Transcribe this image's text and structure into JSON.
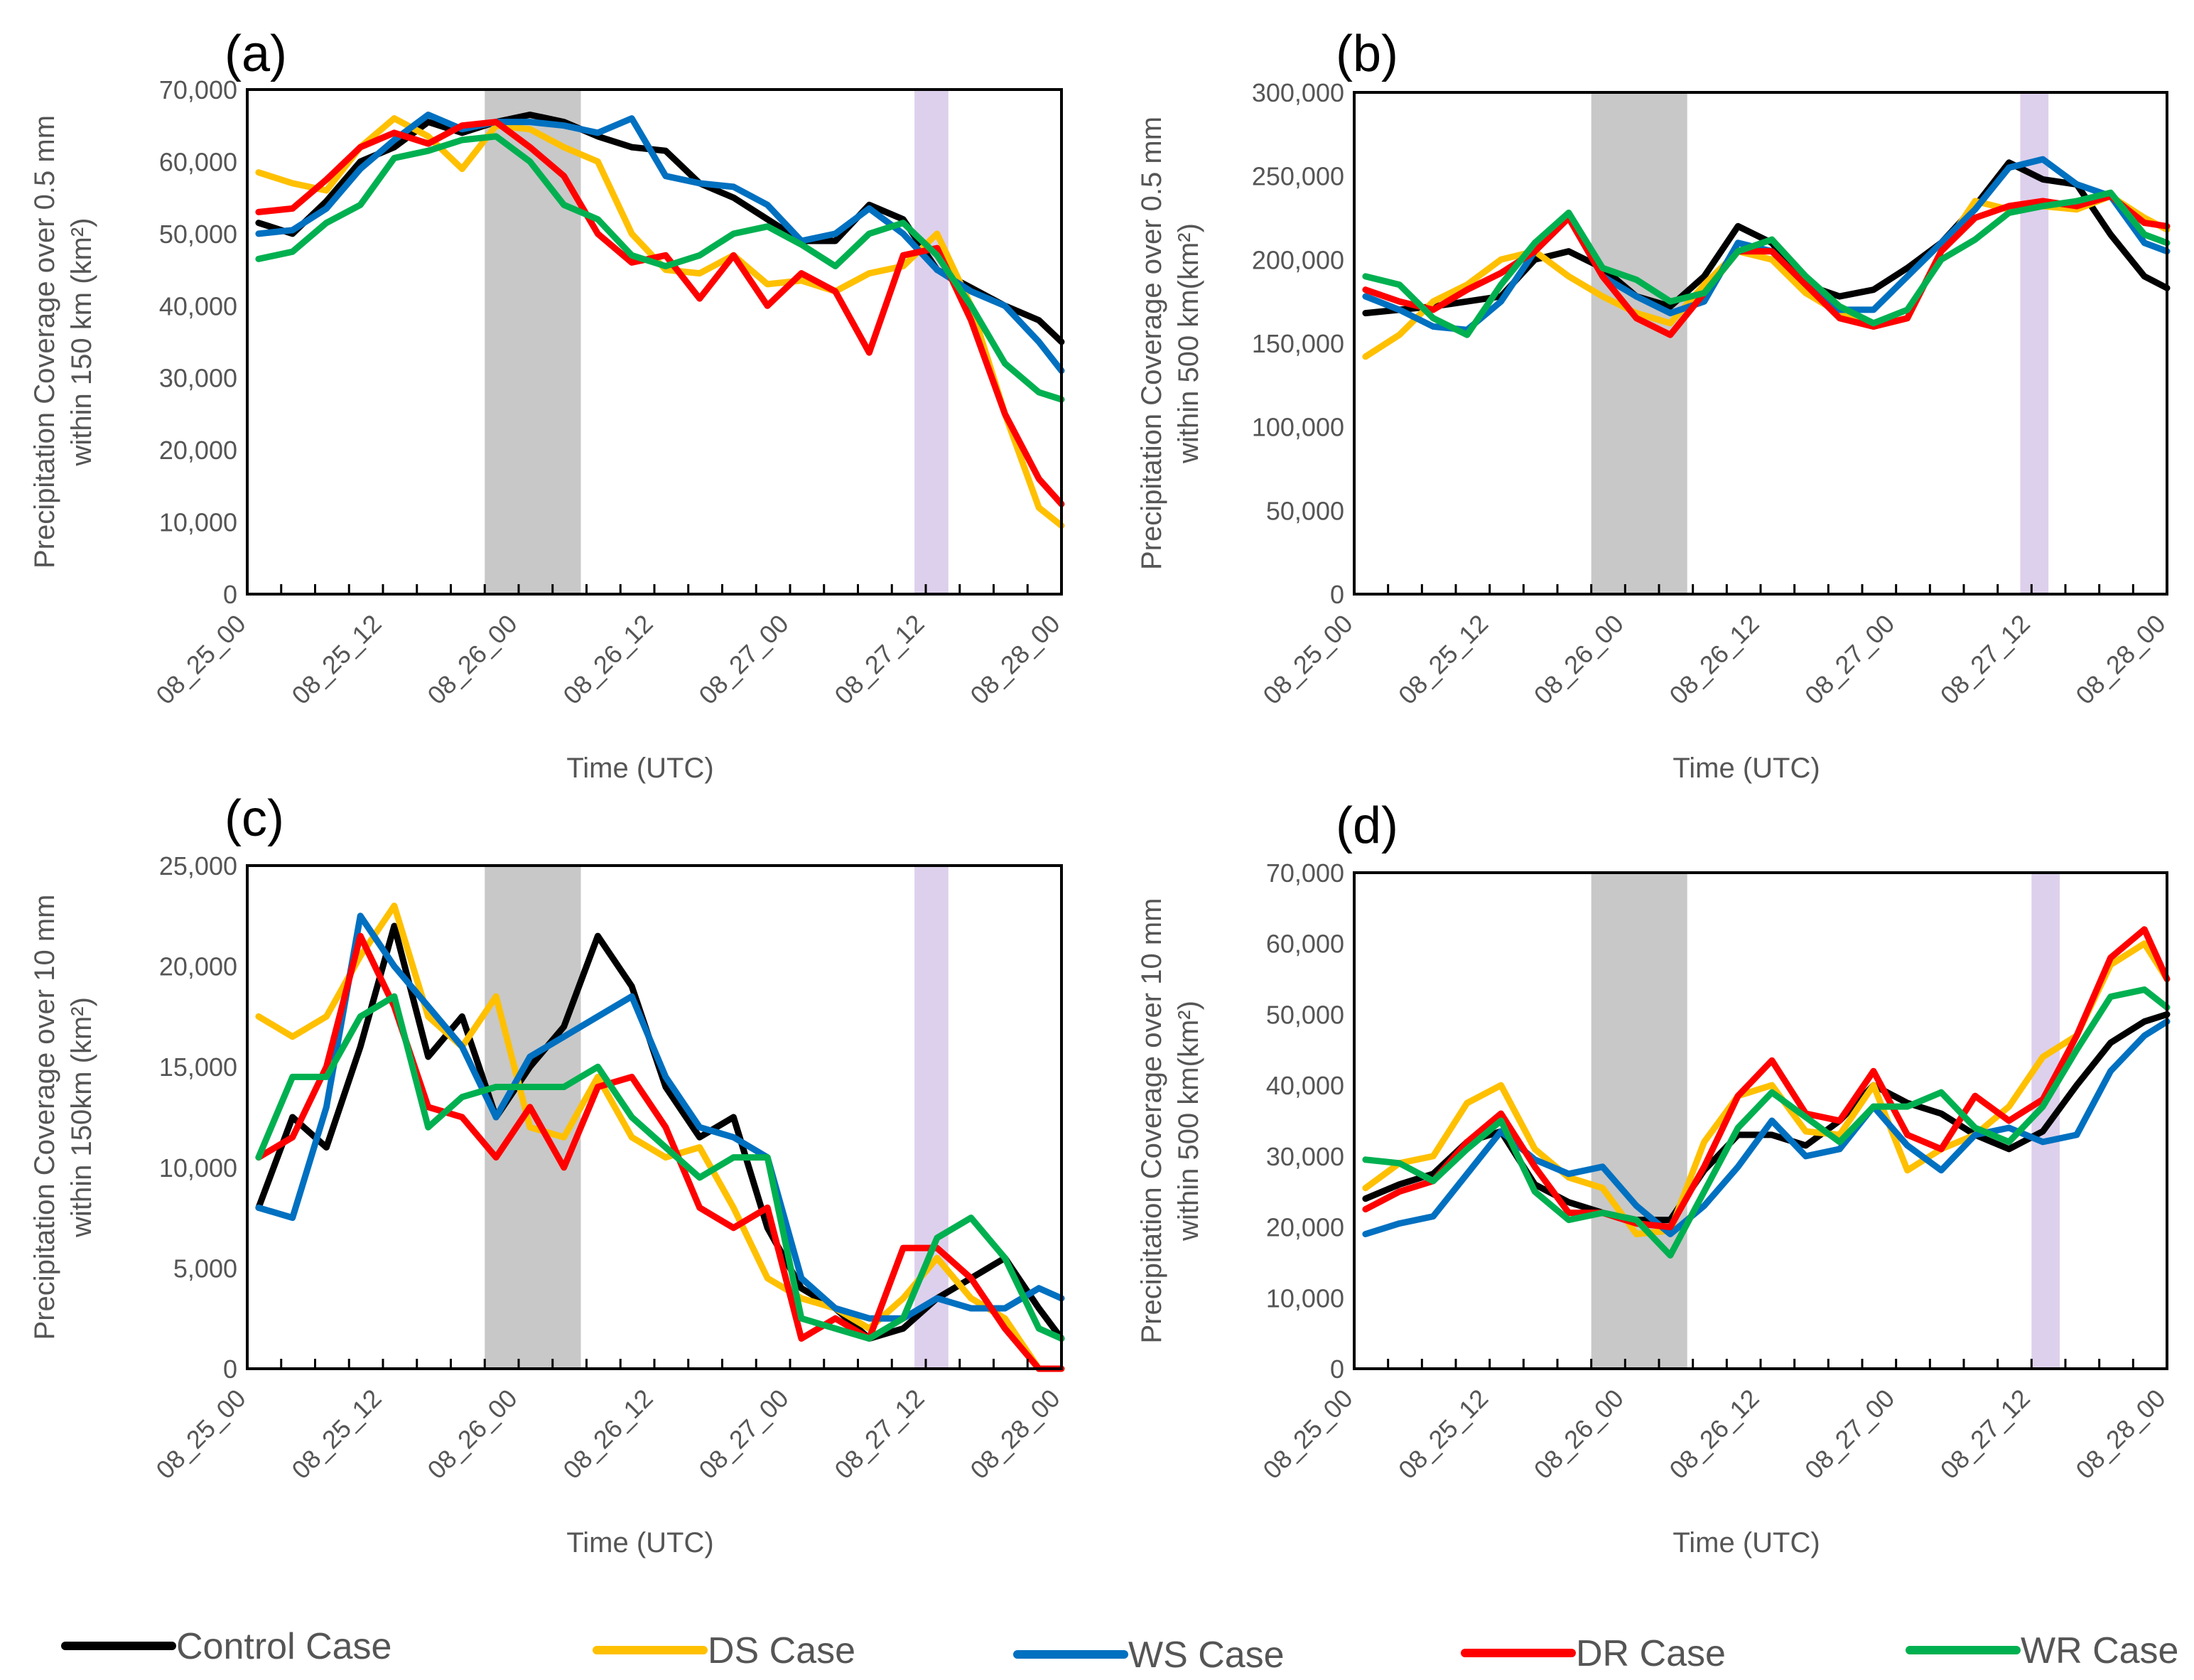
{
  "chart_data": [
    {
      "panel": "(a)",
      "type": "line",
      "title": "",
      "ylabel_line1": "Precipitation Coverage over 0.5 mm",
      "ylabel_line2": "within 150 km (km²)",
      "xlabel": "Time (UTC)",
      "ylim": [
        0,
        70000
      ],
      "yticks": [
        0,
        10000,
        20000,
        30000,
        40000,
        50000,
        60000,
        70000
      ],
      "ytick_labels": [
        "0",
        "10,000",
        "20,000",
        "30,000",
        "40,000",
        "50,000",
        "60,000",
        "70,000"
      ],
      "xlim": [
        0,
        72
      ],
      "xticks": [
        0,
        12,
        24,
        36,
        48,
        60,
        72
      ],
      "xtick_labels": [
        "08_25_00",
        "08_25_12",
        "08_26_00",
        "08_26_12",
        "08_27_00",
        "08_27_12",
        "08_28_00"
      ],
      "shaded_gray": [
        21,
        29.5
      ],
      "shaded_purple": [
        59,
        62
      ],
      "x": [
        1,
        4,
        7,
        10,
        13,
        16,
        19,
        22,
        25,
        28,
        31,
        34,
        37,
        40,
        43,
        46,
        49,
        52,
        55,
        58,
        61,
        64,
        67,
        70,
        72
      ],
      "series": [
        {
          "name": "Control Case",
          "values": [
            51500,
            50000,
            54500,
            60000,
            62000,
            65500,
            64000,
            65500,
            66500,
            65500,
            63500,
            62000,
            61500,
            57000,
            55000,
            52000,
            49000,
            49000,
            54000,
            52000,
            45000,
            42500,
            40000,
            38000,
            35000
          ]
        },
        {
          "name": "DS Case",
          "values": [
            58500,
            57000,
            56000,
            62000,
            66000,
            63500,
            59000,
            65000,
            64500,
            62000,
            60000,
            50000,
            45000,
            44500,
            47000,
            43000,
            43500,
            42000,
            44500,
            45500,
            50000,
            40000,
            25000,
            12000,
            9500
          ]
        },
        {
          "name": "WS Case",
          "values": [
            50000,
            50500,
            53500,
            59000,
            63000,
            66500,
            64500,
            65500,
            65500,
            65000,
            64000,
            66000,
            58000,
            57000,
            56500,
            54000,
            49000,
            50000,
            53500,
            50000,
            45000,
            42000,
            40000,
            35000,
            31000
          ]
        },
        {
          "name": "DR Case",
          "values": [
            53000,
            53500,
            57500,
            62000,
            64000,
            62500,
            65000,
            65500,
            62000,
            58000,
            50000,
            46000,
            47000,
            41000,
            47000,
            40000,
            44500,
            42000,
            33500,
            47000,
            48000,
            38000,
            25000,
            16000,
            12500
          ]
        },
        {
          "name": "WR Case",
          "values": [
            46500,
            47500,
            51500,
            54000,
            60500,
            61500,
            63000,
            63500,
            60000,
            54000,
            52000,
            47000,
            45500,
            47000,
            50000,
            51000,
            48500,
            45500,
            50000,
            51500,
            47000,
            40000,
            32000,
            28000,
            27000
          ]
        }
      ]
    },
    {
      "panel": "(b)",
      "type": "line",
      "title": "",
      "ylabel_line1": "Precipitation Coverage over 0.5 mm",
      "ylabel_line2": "within 500 km(km²)",
      "xlabel": "Time (UTC)",
      "ylim": [
        0,
        300000
      ],
      "yticks": [
        0,
        50000,
        100000,
        150000,
        200000,
        250000,
        300000
      ],
      "ytick_labels": [
        "0",
        "50,000",
        "100,000",
        "150,000",
        "200,000",
        "250,000",
        "300,000"
      ],
      "xlim": [
        0,
        72
      ],
      "xticks": [
        0,
        12,
        24,
        36,
        48,
        60,
        72
      ],
      "xtick_labels": [
        "08_25_00",
        "08_25_12",
        "08_26_00",
        "08_26_12",
        "08_27_00",
        "08_27_12",
        "08_28_00"
      ],
      "shaded_gray": [
        21,
        29.5
      ],
      "shaded_purple": [
        59,
        61.5
      ],
      "x": [
        1,
        4,
        7,
        10,
        13,
        16,
        19,
        22,
        25,
        28,
        31,
        34,
        37,
        40,
        43,
        46,
        49,
        52,
        55,
        58,
        61,
        64,
        67,
        70,
        72
      ],
      "series": [
        {
          "name": "Control Case",
          "values": [
            168000,
            170000,
            172000,
            175000,
            178000,
            200000,
            205000,
            195000,
            178000,
            172000,
            190000,
            220000,
            210000,
            185000,
            178000,
            182000,
            195000,
            210000,
            232000,
            258000,
            248000,
            245000,
            215000,
            190000,
            183000
          ]
        },
        {
          "name": "DS Case",
          "values": [
            142000,
            155000,
            175000,
            185000,
            200000,
            205000,
            190000,
            178000,
            168000,
            162000,
            185000,
            205000,
            200000,
            180000,
            168000,
            160000,
            165000,
            205000,
            235000,
            230000,
            232000,
            230000,
            238000,
            225000,
            218000
          ]
        },
        {
          "name": "WS Case",
          "values": [
            178000,
            170000,
            160000,
            158000,
            175000,
            205000,
            225000,
            190000,
            178000,
            168000,
            175000,
            210000,
            205000,
            185000,
            170000,
            170000,
            190000,
            210000,
            230000,
            255000,
            260000,
            245000,
            238000,
            210000,
            205000
          ]
        },
        {
          "name": "DR Case",
          "values": [
            182000,
            175000,
            170000,
            182000,
            192000,
            205000,
            225000,
            190000,
            165000,
            155000,
            180000,
            205000,
            205000,
            185000,
            165000,
            160000,
            165000,
            205000,
            225000,
            232000,
            235000,
            232000,
            238000,
            222000,
            220000
          ]
        },
        {
          "name": "WR Case",
          "values": [
            190000,
            185000,
            165000,
            155000,
            185000,
            210000,
            228000,
            195000,
            188000,
            175000,
            180000,
            205000,
            212000,
            190000,
            172000,
            162000,
            170000,
            200000,
            212000,
            228000,
            232000,
            235000,
            240000,
            215000,
            210000
          ]
        }
      ]
    },
    {
      "panel": "(c)",
      "type": "line",
      "title": "",
      "ylabel_line1": "Precipitation Coverage over 10 mm",
      "ylabel_line2": "within 150km (km²)",
      "xlabel": "Time (UTC)",
      "ylim": [
        0,
        25000
      ],
      "yticks": [
        0,
        5000,
        10000,
        15000,
        20000,
        25000
      ],
      "ytick_labels": [
        "0",
        "5,000",
        "10,000",
        "15,000",
        "20,000",
        "25,000"
      ],
      "xlim": [
        0,
        72
      ],
      "xticks": [
        0,
        12,
        24,
        36,
        48,
        60,
        72
      ],
      "xtick_labels": [
        "08_25_00",
        "08_25_12",
        "08_26_00",
        "08_26_12",
        "08_27_00",
        "08_27_12",
        "08_28_00"
      ],
      "shaded_gray": [
        21,
        29.5
      ],
      "shaded_purple": [
        59,
        62
      ],
      "x": [
        1,
        4,
        7,
        10,
        13,
        16,
        19,
        22,
        25,
        28,
        31,
        34,
        37,
        40,
        43,
        46,
        49,
        52,
        55,
        58,
        61,
        64,
        67,
        70,
        72
      ],
      "series": [
        {
          "name": "Control Case",
          "values": [
            8000,
            12500,
            11000,
            16000,
            22000,
            15500,
            17500,
            12500,
            15000,
            17000,
            21500,
            19000,
            14000,
            11500,
            12500,
            7000,
            4000,
            3000,
            1500,
            2000,
            3500,
            4500,
            5500,
            3000,
            1500
          ]
        },
        {
          "name": "DS Case",
          "values": [
            17500,
            16500,
            17500,
            20500,
            23000,
            17500,
            16000,
            18500,
            12000,
            11500,
            14500,
            11500,
            10500,
            11000,
            8000,
            4500,
            3500,
            3000,
            2000,
            3500,
            5500,
            3500,
            2500,
            0,
            0
          ]
        },
        {
          "name": "WS Case",
          "values": [
            8000,
            7500,
            13000,
            22500,
            20000,
            18000,
            16000,
            12500,
            15500,
            16500,
            17500,
            18500,
            14500,
            12000,
            11500,
            10500,
            4500,
            3000,
            2500,
            2500,
            3500,
            3000,
            3000,
            4000,
            3500
          ]
        },
        {
          "name": "DR Case",
          "values": [
            10500,
            11500,
            15000,
            21500,
            18000,
            13000,
            12500,
            10500,
            13000,
            10000,
            14000,
            14500,
            12000,
            8000,
            7000,
            8000,
            1500,
            2500,
            1500,
            6000,
            6000,
            4500,
            2000,
            0,
            0
          ]
        },
        {
          "name": "WR Case",
          "values": [
            10500,
            14500,
            14500,
            17500,
            18500,
            12000,
            13500,
            14000,
            14000,
            14000,
            15000,
            12500,
            11000,
            9500,
            10500,
            10500,
            2500,
            2000,
            1500,
            2500,
            6500,
            7500,
            5500,
            2000,
            1500
          ]
        }
      ]
    },
    {
      "panel": "(d)",
      "type": "line",
      "title": "",
      "ylabel_line1": "Precipitation Coverage over 10 mm",
      "ylabel_line2": "within 500 km(km²)",
      "xlabel": "Time (UTC)",
      "ylim": [
        0,
        70000
      ],
      "yticks": [
        0,
        10000,
        20000,
        30000,
        40000,
        50000,
        60000,
        70000
      ],
      "ytick_labels": [
        "0",
        "10,000",
        "20,000",
        "30,000",
        "40,000",
        "50,000",
        "60,000",
        "70,000"
      ],
      "xlim": [
        0,
        72
      ],
      "xticks": [
        0,
        12,
        24,
        36,
        48,
        60,
        72
      ],
      "xtick_labels": [
        "08_25_00",
        "08_25_12",
        "08_26_00",
        "08_26_12",
        "08_27_00",
        "08_27_12",
        "08_28_00"
      ],
      "shaded_gray": [
        21,
        29.5
      ],
      "shaded_purple": [
        60,
        62.5
      ],
      "x": [
        1,
        4,
        7,
        10,
        13,
        16,
        19,
        22,
        25,
        28,
        31,
        34,
        37,
        40,
        43,
        46,
        49,
        52,
        55,
        58,
        61,
        64,
        67,
        70,
        72
      ],
      "series": [
        {
          "name": "Control Case",
          "values": [
            24000,
            26000,
            27500,
            32000,
            33500,
            26000,
            23500,
            22000,
            21000,
            21000,
            28000,
            33000,
            33000,
            31500,
            35000,
            40000,
            37500,
            36000,
            33000,
            31000,
            33500,
            40000,
            46000,
            49000,
            50000
          ]
        },
        {
          "name": "DS Case",
          "values": [
            25500,
            29000,
            30000,
            37500,
            40000,
            31000,
            27000,
            25500,
            19000,
            19500,
            32000,
            38500,
            40000,
            33500,
            33000,
            40000,
            28000,
            31000,
            33000,
            37000,
            44000,
            47000,
            57000,
            60000,
            55000
          ]
        },
        {
          "name": "WS Case",
          "values": [
            19000,
            20500,
            21500,
            27500,
            33500,
            29500,
            27500,
            28500,
            23000,
            19000,
            23000,
            28500,
            35000,
            30000,
            31000,
            37000,
            31500,
            28000,
            33000,
            34000,
            32000,
            33000,
            42000,
            47000,
            49000
          ]
        },
        {
          "name": "DR Case",
          "values": [
            22500,
            25000,
            26500,
            32000,
            36000,
            28500,
            22000,
            22000,
            20500,
            20000,
            28500,
            38500,
            43500,
            36000,
            35000,
            42000,
            33000,
            31000,
            38500,
            35000,
            38000,
            47000,
            58000,
            62000,
            55000
          ]
        },
        {
          "name": "WR Case",
          "values": [
            29500,
            29000,
            26500,
            31000,
            35000,
            25000,
            21000,
            22000,
            21000,
            16000,
            25000,
            34000,
            39000,
            35500,
            32000,
            37000,
            37000,
            39000,
            34000,
            32000,
            37000,
            45000,
            52500,
            53500,
            51000
          ]
        }
      ]
    }
  ],
  "series_colors": {
    "Control Case": "#000000",
    "DS Case": "#FFC000",
    "WS Case": "#0070C0",
    "DR Case": "#FF0000",
    "WR Case": "#00B050"
  },
  "shade_colors": {
    "gray": "#C8C8C8",
    "purple": "#DDD0EC"
  },
  "legend": [
    {
      "label": "Control Case",
      "color": "#000000"
    },
    {
      "label": "DS Case",
      "color": "#FFC000"
    },
    {
      "label": "WS Case",
      "color": "#0070C0"
    },
    {
      "label": "DR Case",
      "color": "#FF0000"
    },
    {
      "label": "WR Case",
      "color": "#00B050"
    }
  ]
}
